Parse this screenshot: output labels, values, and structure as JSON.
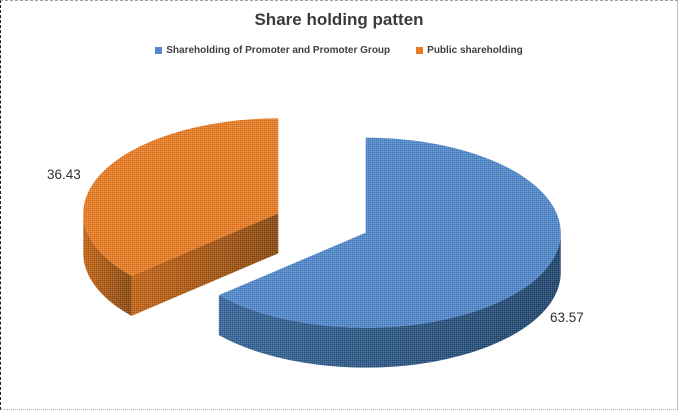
{
  "chart_data": {
    "type": "pie",
    "style": "3d-exploded",
    "title": "Share holding patten",
    "legend_position": "top",
    "start_angle_deg": -90,
    "direction": "clockwise",
    "background": "#FFFFFF",
    "title_color": "#3B3B3B",
    "legend_text_color": "#3F3F3F",
    "value_label_color": "#303030",
    "slices": [
      {
        "label": "Shareholding of Promoter and Promoter Group",
        "value": 63.57,
        "value_label": "63.57",
        "color": "#5389CB",
        "side_color_light": "#3A689A",
        "side_color_dark": "#24496F"
      },
      {
        "label": "Public shareholding",
        "value": 36.43,
        "value_label": "36.43",
        "color": "#E87D27",
        "side_color_light": "#C4671A",
        "side_color_dark": "#8B4C13"
      }
    ]
  }
}
